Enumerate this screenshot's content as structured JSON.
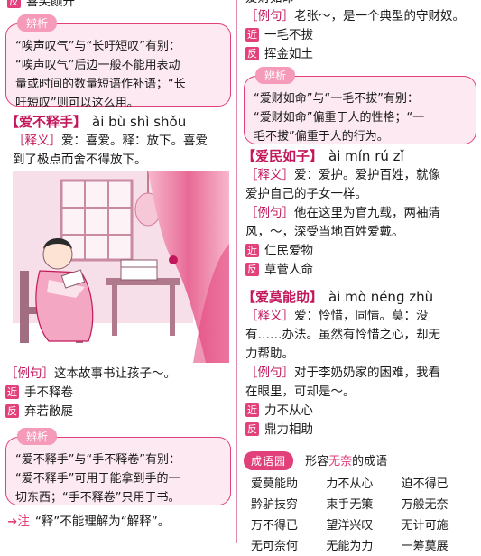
{
  "left": {
    "top_fan": "喜笑颜开",
    "box1": {
      "tag": "辨析",
      "lines": [
        "“唉声叹气”与“长吁短叹”有别：",
        "“唉声叹气”后边一般不能用表动",
        "量或时间的数量短语作补语；“长",
        "吁短叹”则可以这么用。"
      ]
    },
    "entry": {
      "word": "【爱不释手】",
      "pinyin": "ài bù shì shǒu",
      "shiyi_label": "［释义］",
      "shiyi_lines": [
        "爱：喜爱。释：放下。喜爱",
        "到了极点而舍不得放下。"
      ],
      "liju_label": "［例句］",
      "liju": "这本故事书让孩子～。",
      "jin_tag": "近",
      "jin": "手不释卷",
      "fan_tag": "反",
      "fan": "弃若敝屣"
    },
    "box2": {
      "tag": "辨析",
      "lines": [
        "“爱不释手”与“手不释卷”有别：",
        "“爱不释手”可用于能拿到手的一",
        "切东西；“手不释卷”只用于书。"
      ]
    },
    "note_label": "注",
    "note": "“释”不能理解为“解释”。"
  },
  "right": {
    "top_partial": "爱财如命",
    "liju_label": "［例句］",
    "liju": "老张～，是一个典型的守财奴。",
    "jin_tag": "近",
    "jin": "一毛不拔",
    "fan_tag": "反",
    "fan": "挥金如土",
    "box": {
      "tag": "辨析",
      "lines": [
        "“爱财如命”与“一毛不拔”有别：",
        "“爱财如命”偏重于人的性格；“一",
        "毛不拔”偏重于人的行为。"
      ]
    },
    "entry1": {
      "word": "【爱民如子】",
      "pinyin": "ài mín rú zǐ",
      "shiyi_label": "［释义］",
      "shiyi_lines": [
        "爱：爱护。爱护百姓，就像",
        "爱护自己的子女一样。"
      ],
      "liju_label": "［例句］",
      "liju_lines": [
        "他在这里为官九载，两袖清",
        "风，～，深受当地百姓爱戴。"
      ],
      "jin_tag": "近",
      "jin": "仁民爱物",
      "fan_tag": "反",
      "fan": "草菅人命"
    },
    "entry2": {
      "word": "【爱莫能助】",
      "pinyin": "ài mò néng zhù",
      "shiyi_label": "［释义］",
      "shiyi_lines": [
        "爱：怜惜，同情。莫：没",
        "有……办法。虽然有怜惜之心，却无",
        "力帮助。"
      ],
      "liju_label": "［例句］",
      "liju_lines": [
        "对于李奶奶家的困难，我看",
        "在眼里，可却是～。"
      ],
      "jin_tag": "近",
      "jin": "力不从心",
      "fan_tag": "反",
      "fan": "鼎力相助"
    },
    "chengyu": {
      "title": "成语园",
      "heading_pre": "形容",
      "heading_hl": "无奈",
      "heading_post": "的成语",
      "items": [
        "爱莫能助",
        "力不从心",
        "迫不得已",
        "黔驴技穷",
        "束手无策",
        "万般无奈",
        "万不得已",
        "望洋兴叹",
        "无计可施",
        "无可奈何",
        "无能为力",
        "一筹莫展"
      ]
    }
  },
  "colors": {
    "accent": "#e2407a",
    "box_bg": "#fde9f1",
    "bracket": "#c2185b"
  }
}
